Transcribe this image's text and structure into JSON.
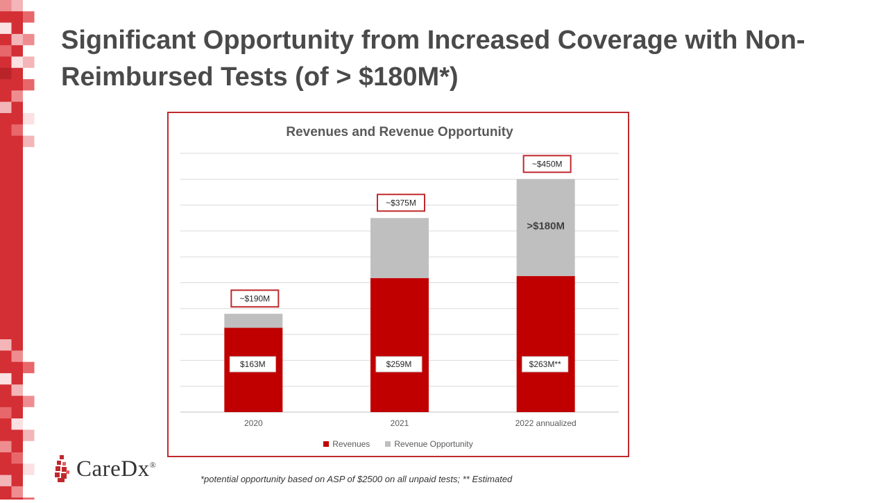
{
  "slide": {
    "title": "Significant Opportunity from Increased Coverage with Non-Reimbursed Tests (of > $180M*)",
    "footnote": "*potential opportunity based on ASP of $2500 on all unpaid tests; ** Estimated",
    "logo": {
      "name": "CareDx",
      "mark": "®"
    }
  },
  "colors": {
    "revenue": "#c00000",
    "opportunity": "#bfbfbf",
    "frame": "#c0282d",
    "title": "#4a4a4a"
  },
  "chart_data": {
    "type": "bar",
    "stacked": true,
    "title": "Revenues and Revenue Opportunity",
    "categories": [
      "2020",
      "2021",
      "2022 annualized"
    ],
    "series": [
      {
        "name": "Revenues",
        "values": [
          163,
          259,
          263
        ]
      },
      {
        "name": "Revenue Opportunity",
        "values": [
          27,
          116,
          187
        ]
      }
    ],
    "ylim": [
      0,
      500
    ],
    "ytick_step": 50,
    "grid": true,
    "legend": "bottom",
    "total_labels": [
      "~$190M",
      "~$375M",
      "~$450M"
    ],
    "revenue_labels": [
      "$163M",
      "$259M",
      "$263M**"
    ],
    "opportunity_annotation": {
      "category": "2022 annualized",
      "text": ">$180M"
    }
  }
}
